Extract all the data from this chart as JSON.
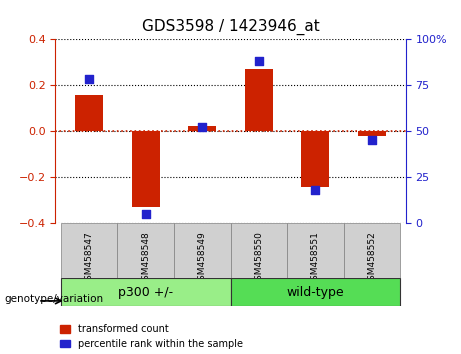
{
  "title": "GDS3598 / 1423946_at",
  "samples": [
    "GSM458547",
    "GSM458548",
    "GSM458549",
    "GSM458550",
    "GSM458551",
    "GSM458552"
  ],
  "bar_values": [
    0.155,
    -0.33,
    0.02,
    0.27,
    -0.245,
    -0.02
  ],
  "percentile_values": [
    78,
    5,
    52,
    88,
    18,
    45
  ],
  "ylim_left": [
    -0.4,
    0.4
  ],
  "ylim_right": [
    0,
    100
  ],
  "yticks_left": [
    -0.4,
    -0.2,
    0.0,
    0.2,
    0.4
  ],
  "yticks_right": [
    0,
    25,
    50,
    75,
    100
  ],
  "yticklabels_right": [
    "0",
    "25",
    "50",
    "75",
    "100%"
  ],
  "bar_color": "#cc2200",
  "scatter_color": "#2222cc",
  "zero_line_color": "#cc2200",
  "grid_color": "black",
  "group_labels": [
    "p300 +/-",
    "wild-type"
  ],
  "group_ranges": [
    [
      0,
      3
    ],
    [
      3,
      6
    ]
  ],
  "group_colors": [
    "#99ee88",
    "#55dd55"
  ],
  "genotype_label": "genotype/variation",
  "legend_bar_label": "transformed count",
  "legend_scatter_label": "percentile rank within the sample",
  "bar_width": 0.5,
  "ax_bg": "#f0f0f0",
  "plot_bg": "white"
}
